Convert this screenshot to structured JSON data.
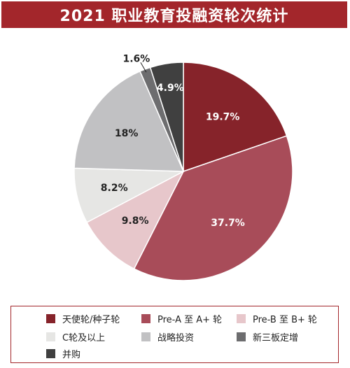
{
  "title": "2021 职业教育投融资轮次统计",
  "chart_data": {
    "type": "pie",
    "title": "2021 职业教育投融资轮次统计",
    "slices": [
      {
        "name": "天使轮/种子轮",
        "value": 19.7,
        "label": "19.7%",
        "color": "#86232a"
      },
      {
        "name": "Pre-A 至 A+ 轮",
        "value": 37.7,
        "label": "37.7%",
        "color": "#a84c59"
      },
      {
        "name": "Pre-B 至 B+ 轮",
        "value": 9.8,
        "label": "9.8%",
        "color": "#e7c7cb"
      },
      {
        "name": "C轮及以上",
        "value": 8.2,
        "label": "8.2%",
        "color": "#e6e6e4"
      },
      {
        "name": "战略投资",
        "value": 18.0,
        "label": "18%",
        "color": "#c1c1c3"
      },
      {
        "name": "新三板定增",
        "value": 1.6,
        "label": "1.6%",
        "color": "#6d6d6f"
      },
      {
        "name": "并购",
        "value": 4.9,
        "label": "4.9%",
        "color": "#404040"
      }
    ],
    "legend_position": "bottom"
  }
}
